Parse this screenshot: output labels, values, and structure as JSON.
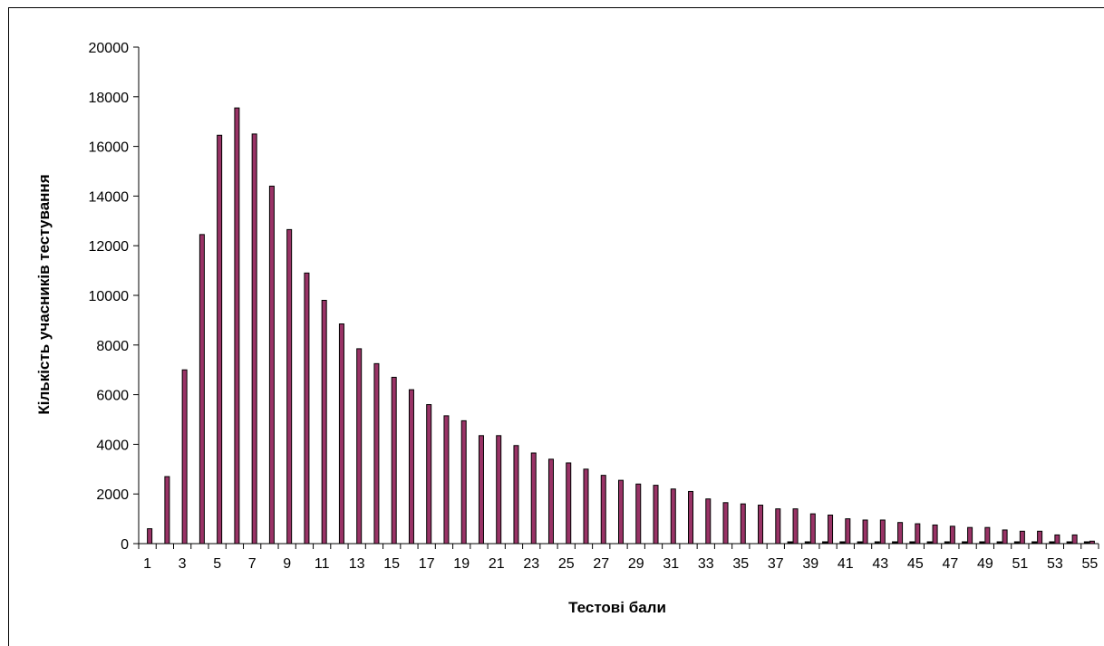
{
  "colors": {
    "bar_fill": "#993366",
    "bar_stroke": "#000000",
    "background": "#ffffff"
  },
  "chart_data": {
    "type": "bar",
    "title": "",
    "xlabel": "Тестові бали",
    "ylabel": "Кількість учасників тестування",
    "ylim": [
      0,
      20000
    ],
    "yticks": [
      0,
      2000,
      4000,
      6000,
      8000,
      10000,
      12000,
      14000,
      16000,
      18000,
      20000
    ],
    "x_tick_labels": [
      1,
      3,
      5,
      7,
      9,
      11,
      13,
      15,
      17,
      19,
      21,
      23,
      25,
      27,
      29,
      31,
      33,
      35,
      37,
      39,
      41,
      43,
      45,
      47,
      49,
      51,
      53,
      55
    ],
    "grid": false,
    "legend": "none",
    "categories": [
      1,
      2,
      3,
      4,
      5,
      6,
      7,
      8,
      9,
      10,
      11,
      12,
      13,
      14,
      15,
      16,
      17,
      18,
      19,
      20,
      21,
      22,
      23,
      24,
      25,
      26,
      27,
      28,
      29,
      30,
      31,
      32,
      33,
      34,
      35,
      36,
      37,
      38,
      39,
      40,
      41,
      42,
      43,
      44,
      45,
      46,
      47,
      48,
      49,
      50,
      51,
      52,
      53,
      54,
      55
    ],
    "series": [
      {
        "values": [
          600,
          2700,
          7000,
          12450,
          16450,
          17550,
          16500,
          14400,
          12650,
          10900,
          9800,
          8850,
          7850,
          7250,
          6700,
          6200,
          5600,
          5150,
          4950,
          4350,
          4350,
          3950,
          3650,
          3400,
          3250,
          3000,
          2750,
          2550,
          2400,
          2350,
          2200,
          2100,
          1800,
          1650,
          1600,
          1550,
          1400,
          1400,
          1200,
          1150,
          1000,
          950,
          950,
          850,
          800,
          750,
          700,
          650,
          650,
          550,
          500,
          500,
          350,
          350,
          100
        ]
      },
      {
        "values": [
          0,
          0,
          0,
          0,
          0,
          0,
          0,
          0,
          0,
          0,
          0,
          0,
          0,
          0,
          0,
          0,
          0,
          0,
          0,
          0,
          0,
          0,
          0,
          0,
          0,
          0,
          0,
          0,
          0,
          0,
          0,
          0,
          0,
          0,
          0,
          0,
          0,
          60,
          60,
          60,
          60,
          60,
          60,
          60,
          60,
          60,
          60,
          60,
          60,
          60,
          60,
          60,
          60,
          60,
          60
        ]
      }
    ]
  }
}
